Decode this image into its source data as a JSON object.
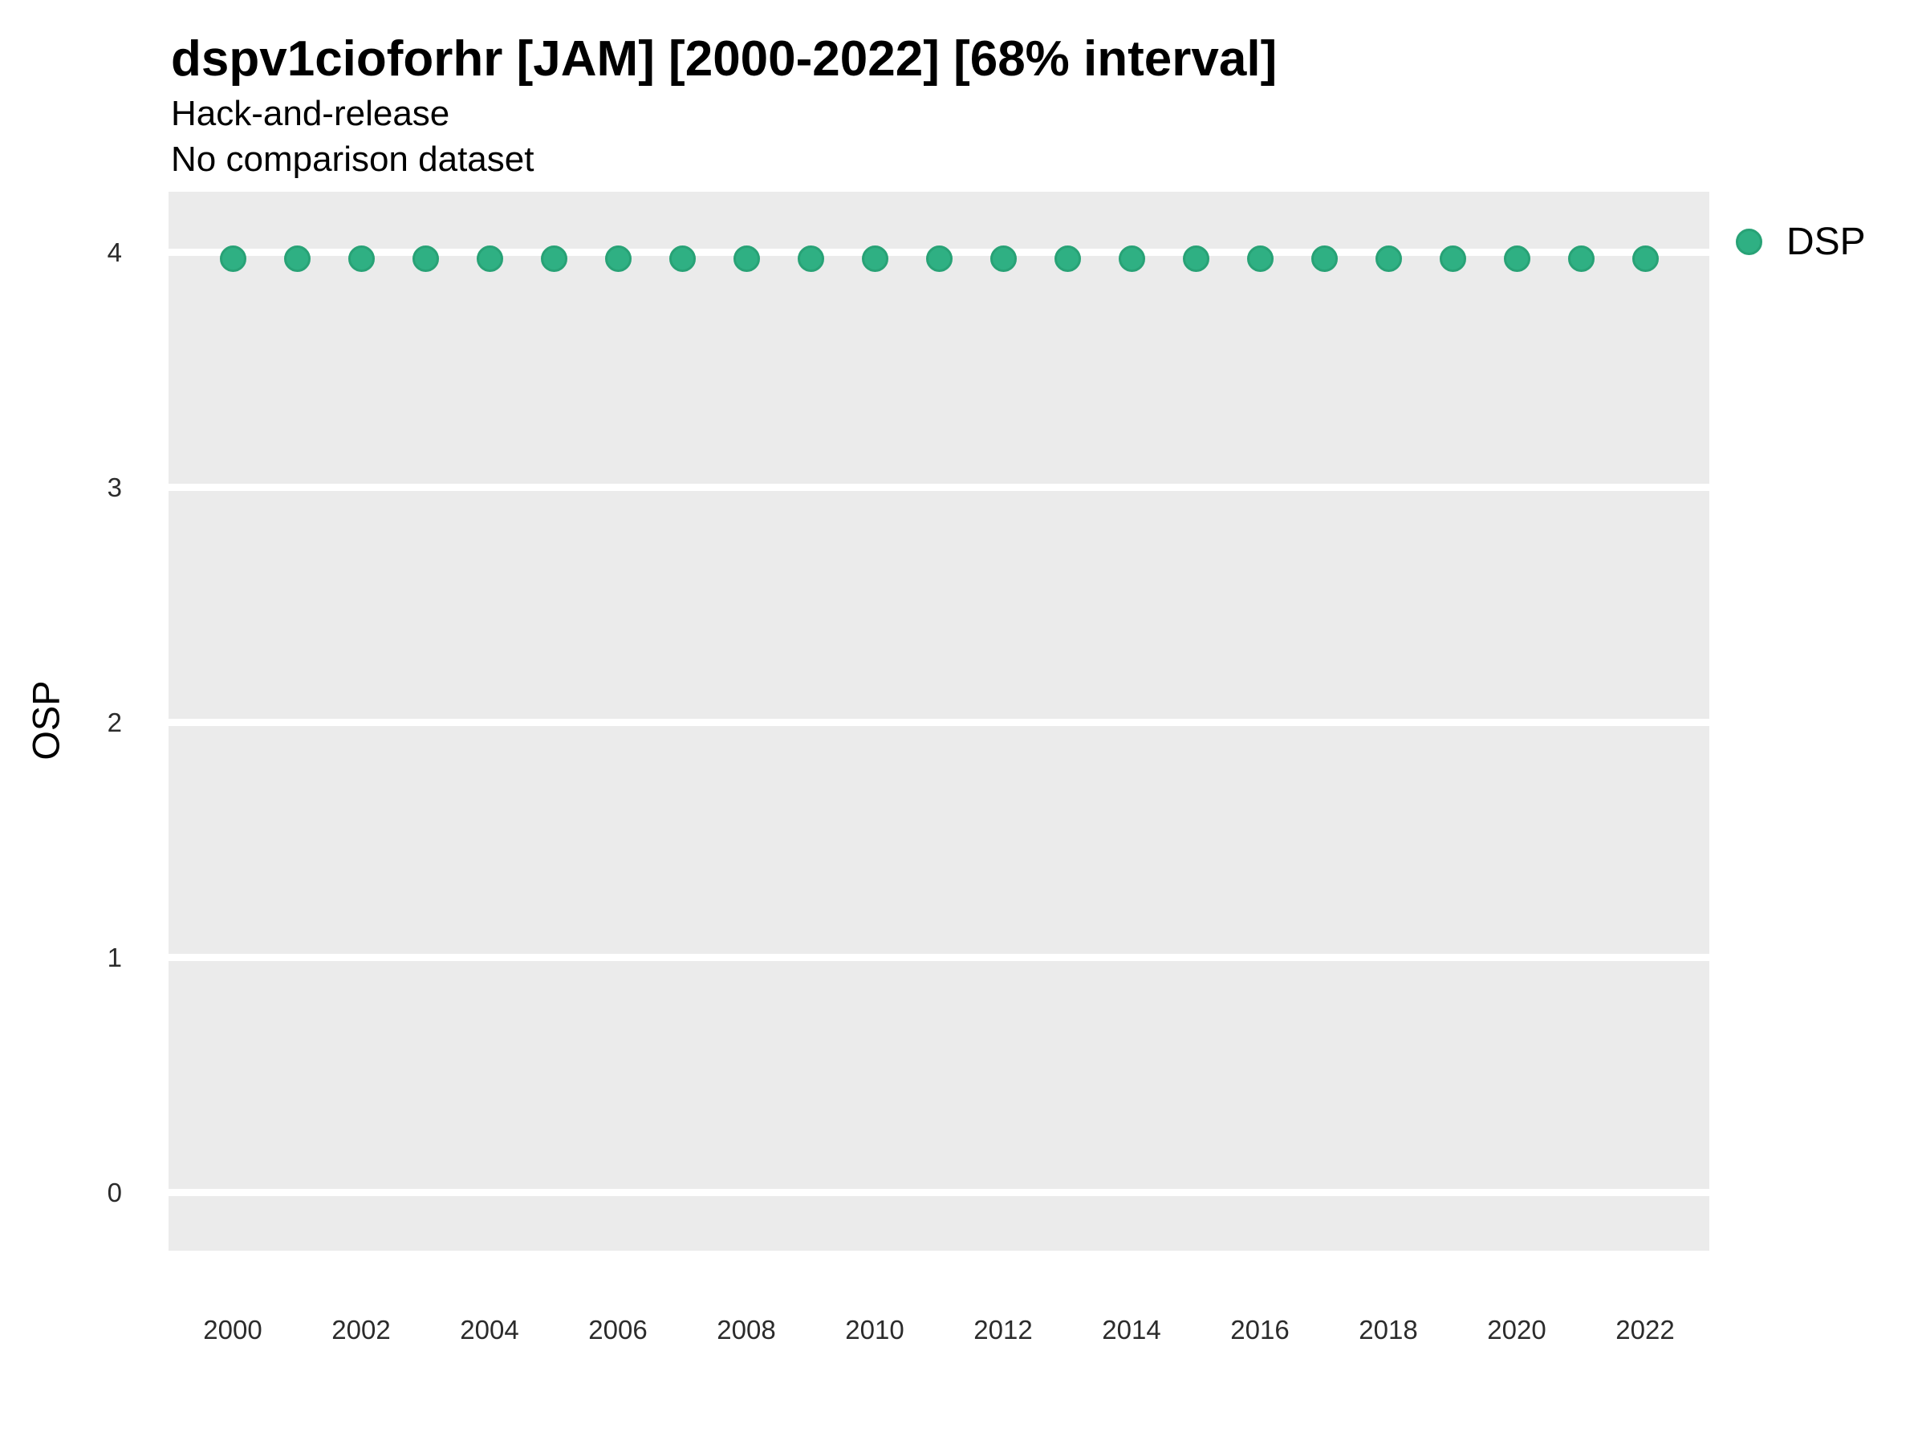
{
  "header": {
    "title": "dspv1cioforhr [JAM] [2000-2022] [68% interval]",
    "subtitle": "Hack-and-release",
    "dataset_note": "No comparison dataset"
  },
  "chart_data": {
    "type": "scatter",
    "title": "dspv1cioforhr [JAM] [2000-2022] [68% interval]",
    "subtitle": "Hack-and-release",
    "annotation": "No comparison dataset",
    "xlabel": "",
    "ylabel": "OSP",
    "x_ticks": [
      2000,
      2002,
      2004,
      2006,
      2008,
      2010,
      2012,
      2014,
      2016,
      2018,
      2020,
      2022
    ],
    "y_ticks": [
      0,
      1,
      2,
      3,
      4
    ],
    "x_domain": [
      1999,
      2023
    ],
    "y_domain": [
      -0.248,
      4.256
    ],
    "grid": "horizontal major gridlines only",
    "legend_position": "right-top",
    "panel_background": "#EBEBEB",
    "gridline_color": "#FFFFFF",
    "series": [
      {
        "name": "DSP",
        "marker": "circle",
        "color": "#2FB083",
        "stroke_color": "#28A276",
        "x": [
          2000,
          2001,
          2002,
          2003,
          2004,
          2005,
          2006,
          2007,
          2008,
          2009,
          2010,
          2011,
          2012,
          2013,
          2014,
          2015,
          2016,
          2017,
          2018,
          2019,
          2020,
          2021,
          2022
        ],
        "y": [
          3.97,
          3.97,
          3.97,
          3.97,
          3.97,
          3.97,
          3.97,
          3.97,
          3.97,
          3.97,
          3.97,
          3.97,
          3.97,
          3.97,
          3.97,
          3.97,
          3.97,
          3.97,
          3.97,
          3.97,
          3.97,
          3.97,
          3.97
        ]
      }
    ]
  },
  "legend": {
    "items": [
      {
        "label": "DSP",
        "color": "#2FB083",
        "stroke_color": "#28A276"
      }
    ]
  }
}
